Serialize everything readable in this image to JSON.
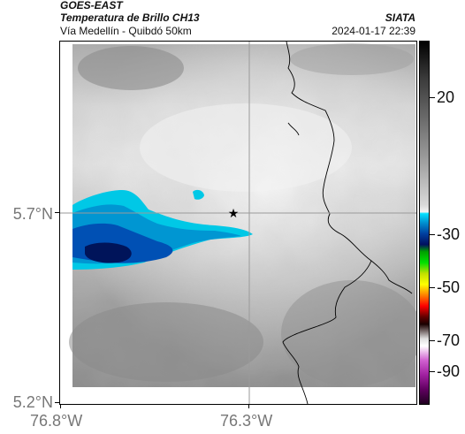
{
  "header": {
    "satellite": "GOES-EAST",
    "product": "Temperatura de Brillo CH13",
    "org": "SIATA",
    "region": "Vía Medellín - Quibdó 50km",
    "datetime": "2024-01-17 22:39"
  },
  "axes": {
    "y_ticks": [
      "5.7°N",
      "5.2°N"
    ],
    "x_ticks": [
      "76.8°W",
      "76.3°W"
    ]
  },
  "colorbar": {
    "labels": [
      "20",
      "-30",
      "-50",
      "-70",
      "-90"
    ]
  },
  "colors": {
    "cold_cyan": "#00c8e6",
    "cold_blue": "#0050b4",
    "deep_navy": "#00145a",
    "border": "#000000",
    "grid": "#9a9a9a"
  },
  "icons": {
    "marker": "star-icon"
  }
}
